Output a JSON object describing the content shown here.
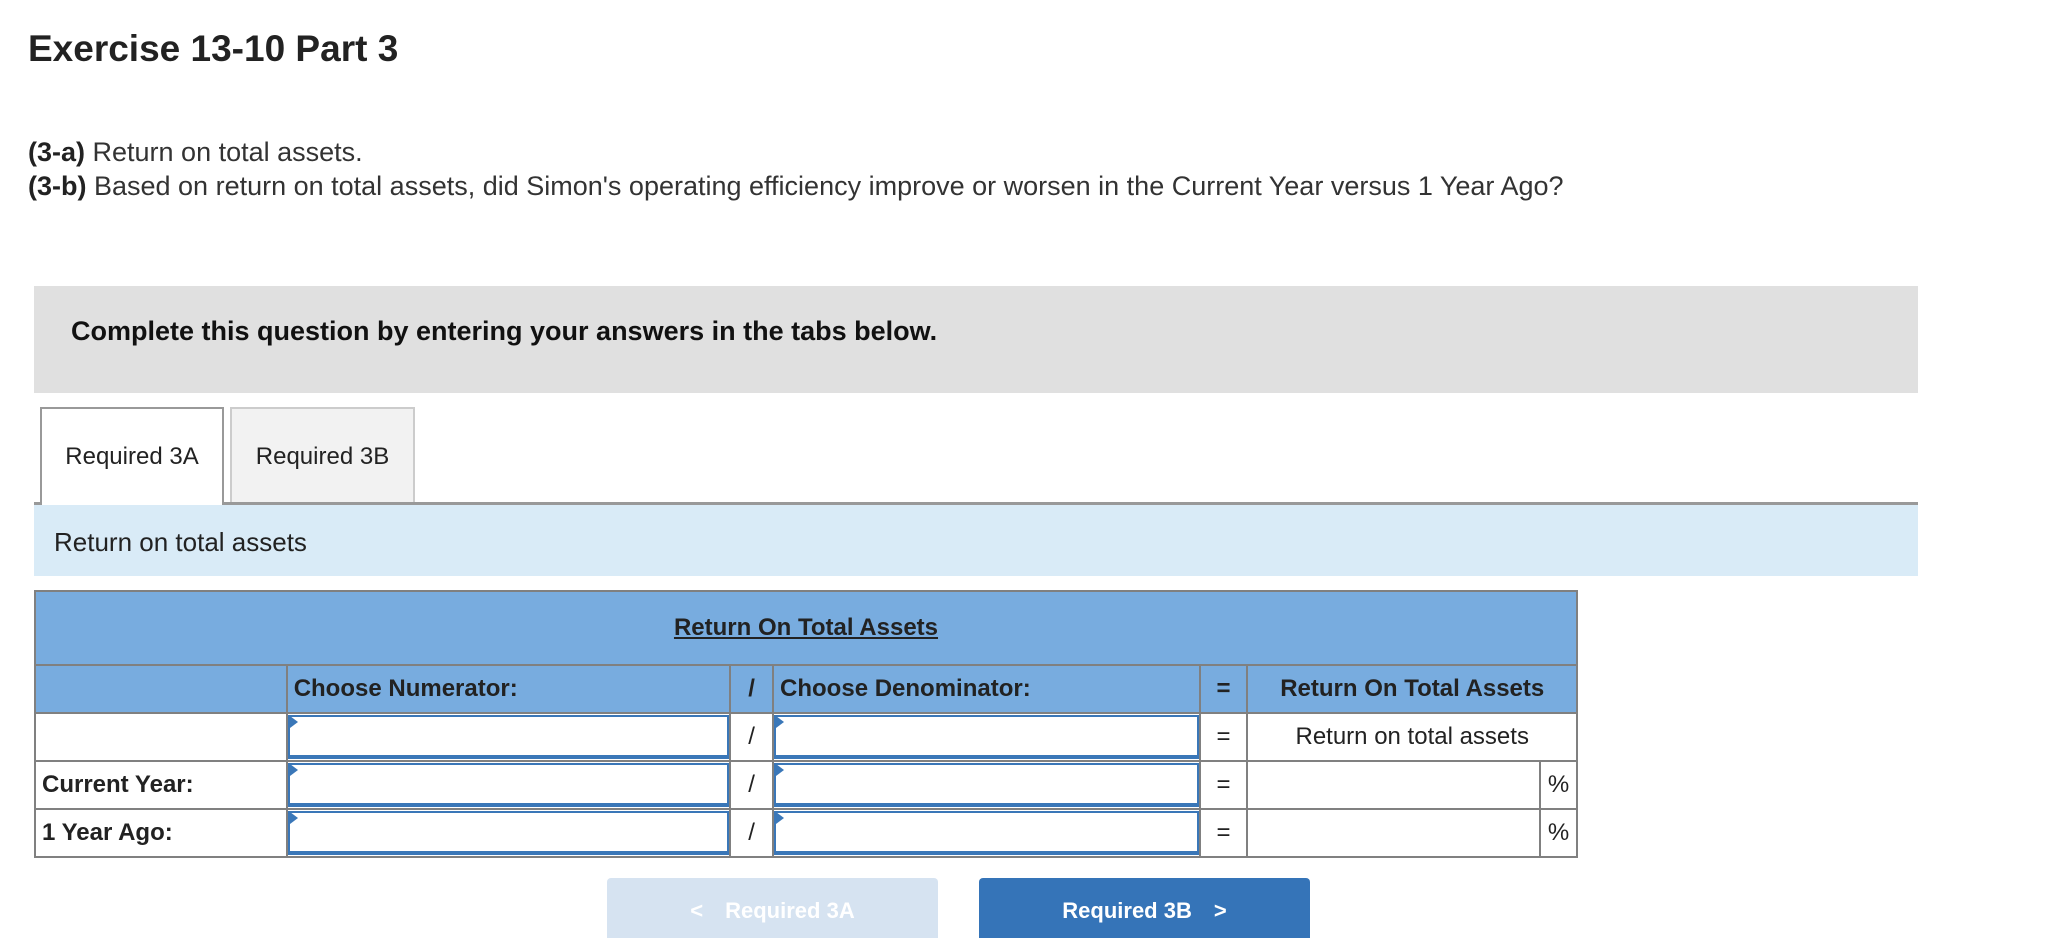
{
  "title": "Exercise 13-10 Part 3",
  "questions": [
    {
      "tag": "(3-a)",
      "text": " Return on total assets."
    },
    {
      "tag": "(3-b)",
      "text": " Based on return on total assets, did Simon's operating efficiency improve or worsen in the Current Year versus 1 Year Ago?"
    }
  ],
  "banner": "Complete this question by entering your answers in the tabs below.",
  "tabs": [
    {
      "label": "Required 3A",
      "active": true
    },
    {
      "label": "Required 3B",
      "active": false
    }
  ],
  "panel_title": "Return on total assets",
  "table": {
    "title": "Return On Total Assets",
    "headers": {
      "numerator": "Choose Numerator:",
      "slash": "/",
      "denominator": "Choose Denominator:",
      "equals": "=",
      "result": "Return On Total Assets"
    },
    "formula_row": {
      "result": "Return on total assets"
    },
    "rows": [
      {
        "label": "Current Year:",
        "unit": "%"
      },
      {
        "label": "1 Year Ago:",
        "unit": "%"
      }
    ],
    "slash": "/",
    "equals": "="
  },
  "nav": {
    "prev": "Required 3A",
    "next": "Required 3B",
    "prev_icon": "chevron-left",
    "next_icon": "chevron-right",
    "prev_glyph": "<",
    "next_glyph": ">"
  },
  "colors": {
    "header": "#78acdf",
    "accent": "#3574b8",
    "panel": "#d9ebf7"
  }
}
